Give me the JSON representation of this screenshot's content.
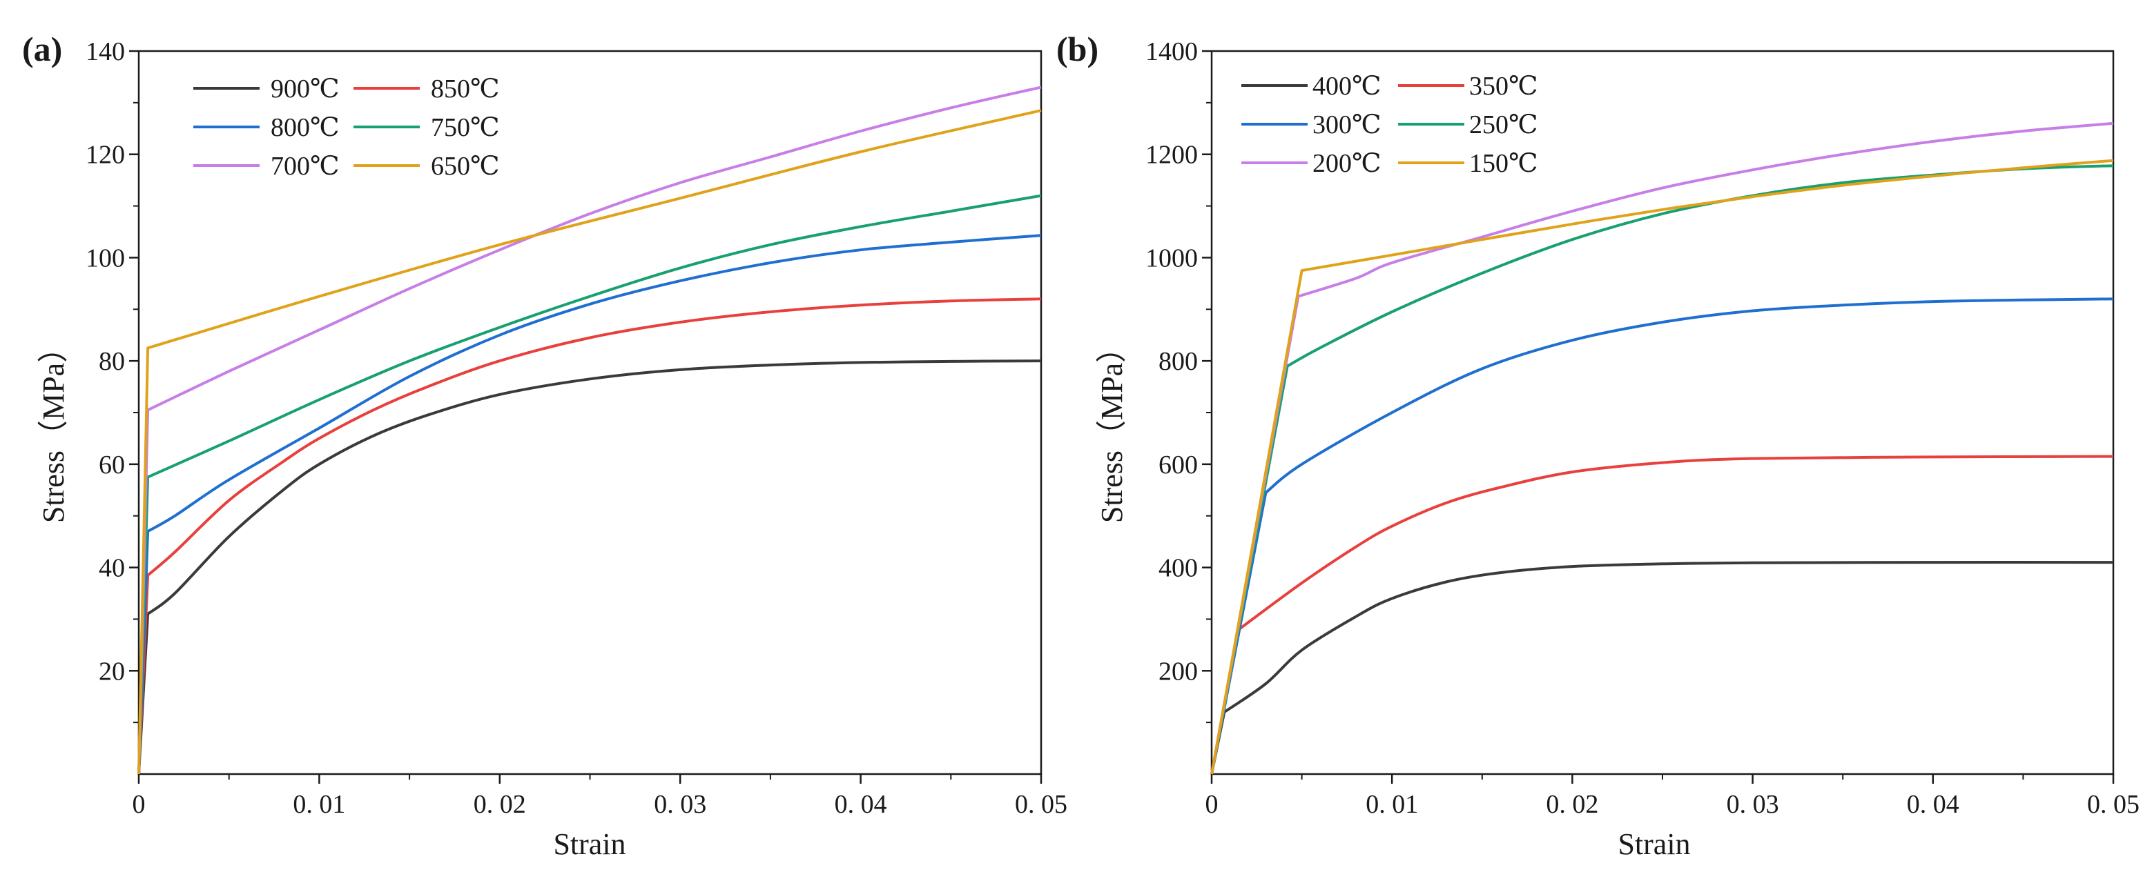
{
  "chart_data": [
    {
      "type": "line",
      "panel_label": "(a)",
      "xlabel": "Strain",
      "ylabel": "Stress（MPa）",
      "xlim": [
        0,
        0.05
      ],
      "ylim": [
        0,
        140
      ],
      "xticks": [
        0,
        0.01,
        0.02,
        0.03,
        0.04,
        0.05
      ],
      "xtick_labels": [
        "0",
        "0. 01",
        "0. 02",
        "0. 03",
        "0. 04",
        "0. 05"
      ],
      "yticks": [
        20,
        40,
        60,
        80,
        100,
        120,
        140
      ],
      "ytick_labels": [
        "20",
        "40",
        "60",
        "80",
        "100",
        "120",
        "140"
      ],
      "grid": false,
      "legend": "top-left",
      "series": [
        {
          "name": "900℃",
          "color": "#3a3a3a",
          "x": [
            0,
            0.0005,
            0.002,
            0.005,
            0.008,
            0.01,
            0.013,
            0.016,
            0.02,
            0.025,
            0.03,
            0.035,
            0.04,
            0.045,
            0.05
          ],
          "y": [
            0,
            31,
            35,
            46,
            55,
            60,
            65.5,
            69.5,
            73.5,
            76.5,
            78.3,
            79.2,
            79.7,
            79.9,
            80
          ]
        },
        {
          "name": "850℃",
          "color": "#e8403c",
          "x": [
            0,
            0.0005,
            0.002,
            0.005,
            0.008,
            0.01,
            0.013,
            0.016,
            0.02,
            0.025,
            0.03,
            0.035,
            0.04,
            0.045,
            0.05
          ],
          "y": [
            0,
            38.5,
            43,
            53,
            60.5,
            65,
            70.5,
            75,
            80,
            84.5,
            87.5,
            89.5,
            90.8,
            91.6,
            92
          ]
        },
        {
          "name": "800℃",
          "color": "#1f6fd0",
          "x": [
            0,
            0.0005,
            0.002,
            0.005,
            0.01,
            0.015,
            0.02,
            0.025,
            0.03,
            0.035,
            0.04,
            0.045,
            0.05
          ],
          "y": [
            0,
            47,
            50,
            57,
            67,
            77,
            85,
            91,
            95.5,
            99,
            101.5,
            103,
            104.3
          ]
        },
        {
          "name": "750℃",
          "color": "#18a070",
          "x": [
            0,
            0.0005,
            0.005,
            0.01,
            0.015,
            0.02,
            0.025,
            0.03,
            0.035,
            0.04,
            0.045,
            0.05
          ],
          "y": [
            0,
            57.5,
            64.5,
            72.5,
            80,
            86.5,
            92.5,
            98,
            102.5,
            106,
            109,
            112
          ]
        },
        {
          "name": "700℃",
          "color": "#c77ee6",
          "x": [
            0,
            0.0005,
            0.005,
            0.01,
            0.015,
            0.02,
            0.025,
            0.03,
            0.035,
            0.04,
            0.045,
            0.05
          ],
          "y": [
            0,
            70.5,
            78,
            86,
            94,
            101.5,
            108.5,
            114.5,
            119.5,
            124.5,
            129,
            133
          ]
        },
        {
          "name": "650℃",
          "color": "#e0a21a",
          "x": [
            0,
            0.0005,
            0.01,
            0.02,
            0.03,
            0.04,
            0.05
          ],
          "y": [
            0,
            82.5,
            92.5,
            102.5,
            111.5,
            120.5,
            128.5
          ]
        }
      ]
    },
    {
      "type": "line",
      "panel_label": "(b)",
      "xlabel": "Strain",
      "ylabel": "Stress（MPa）",
      "xlim": [
        0,
        0.05
      ],
      "ylim": [
        0,
        1400
      ],
      "xticks": [
        0,
        0.01,
        0.02,
        0.03,
        0.04,
        0.05
      ],
      "xtick_labels": [
        "0",
        "0. 01",
        "0. 02",
        "0. 03",
        "0. 04",
        "0. 05"
      ],
      "yticks": [
        200,
        400,
        600,
        800,
        1000,
        1200,
        1400
      ],
      "ytick_labels": [
        "200",
        "400",
        "600",
        "800",
        "1000",
        "1200",
        "1400"
      ],
      "grid": false,
      "legend": "top-left",
      "series": [
        {
          "name": "400℃",
          "color": "#3a3a3a",
          "x": [
            0,
            0.0007,
            0.003,
            0.005,
            0.008,
            0.01,
            0.013,
            0.016,
            0.02,
            0.025,
            0.03,
            0.04,
            0.05
          ],
          "y": [
            0,
            120,
            175,
            240,
            305,
            340,
            372,
            390,
            402,
            407,
            409,
            410,
            410
          ]
        },
        {
          "name": "350℃",
          "color": "#e8403c",
          "x": [
            0,
            0.0015,
            0.005,
            0.008,
            0.01,
            0.013,
            0.016,
            0.02,
            0.025,
            0.03,
            0.04,
            0.05
          ],
          "y": [
            0,
            280,
            370,
            440,
            480,
            525,
            555,
            585,
            603,
            611,
            614,
            615
          ]
        },
        {
          "name": "300℃",
          "color": "#1f6fd0",
          "x": [
            0,
            0.003,
            0.005,
            0.01,
            0.015,
            0.02,
            0.025,
            0.03,
            0.035,
            0.04,
            0.045,
            0.05
          ],
          "y": [
            0,
            545,
            600,
            700,
            785,
            840,
            875,
            897,
            908,
            915,
            918,
            920
          ]
        },
        {
          "name": "250℃",
          "color": "#18a070",
          "x": [
            0,
            0.0042,
            0.006,
            0.01,
            0.015,
            0.02,
            0.025,
            0.03,
            0.035,
            0.04,
            0.045,
            0.05
          ],
          "y": [
            0,
            790,
            825,
            895,
            970,
            1035,
            1085,
            1120,
            1145,
            1160,
            1172,
            1178
          ]
        },
        {
          "name": "200℃",
          "color": "#c77ee6",
          "x": [
            0,
            0.0048,
            0.008,
            0.01,
            0.015,
            0.02,
            0.025,
            0.03,
            0.035,
            0.04,
            0.045,
            0.05
          ],
          "y": [
            0,
            925,
            960,
            990,
            1040,
            1090,
            1135,
            1170,
            1200,
            1225,
            1245,
            1260
          ]
        },
        {
          "name": "150℃",
          "color": "#e0a21a",
          "x": [
            0,
            0.005,
            0.01,
            0.015,
            0.02,
            0.025,
            0.03,
            0.035,
            0.04,
            0.045,
            0.05
          ],
          "y": [
            0,
            975,
            1005,
            1035,
            1065,
            1093,
            1118,
            1140,
            1158,
            1174,
            1188
          ]
        }
      ]
    }
  ]
}
